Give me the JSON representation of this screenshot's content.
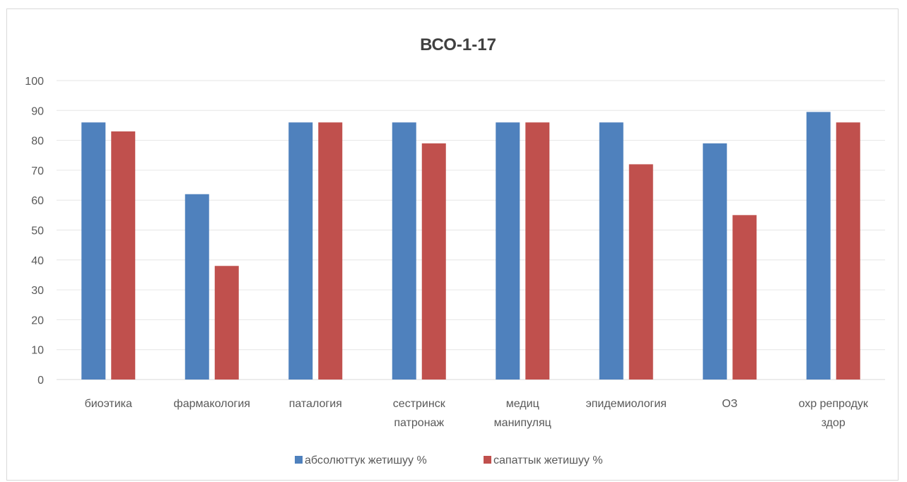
{
  "chart_data": {
    "type": "bar",
    "title": "ВСО-1-17",
    "xlabel": "",
    "ylabel": "",
    "ylim": [
      0,
      100
    ],
    "yticks": [
      0,
      10,
      20,
      30,
      40,
      50,
      60,
      70,
      80,
      90,
      100
    ],
    "grid": true,
    "legend_position": "bottom",
    "categories": [
      [
        "биоэтика"
      ],
      [
        "фармакология"
      ],
      [
        "паталогия"
      ],
      [
        "сестринск",
        "патронаж"
      ],
      [
        "медиц",
        "манипуляц"
      ],
      [
        "эпидемиология"
      ],
      [
        "ОЗ"
      ],
      [
        "охр репродук",
        "здор"
      ]
    ],
    "series": [
      {
        "name": "абсолюттук жетишуу %",
        "color": "#4f81bd",
        "values": [
          86,
          62,
          86,
          86,
          86,
          86,
          79,
          89.5
        ]
      },
      {
        "name": "сапаттык жетишуу %",
        "color": "#c0504d",
        "values": [
          83,
          38,
          86,
          79,
          86,
          72,
          55,
          86
        ]
      }
    ]
  }
}
